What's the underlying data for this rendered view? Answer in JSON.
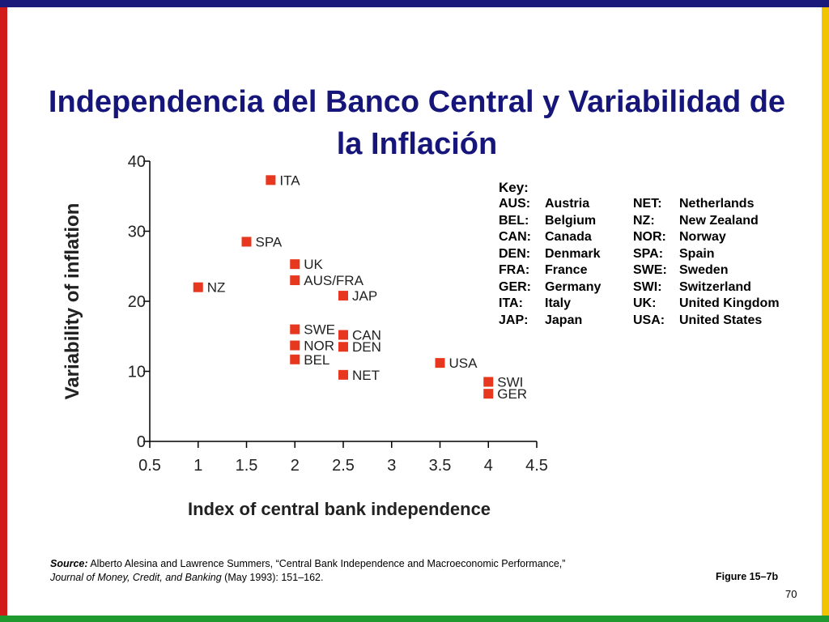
{
  "slide": {
    "title": "Independencia del Banco Central y Variabilidad de la Inflación",
    "source_label": "Source:",
    "source_authors": " Alberto Alesina and Lawrence Summers, “Central Bank Independence and Macroeconomic Performance,” ",
    "source_journal": "Journal of Money, Credit, and Banking",
    "source_tail": " (May 1993): 151–162.",
    "figure_label": "Figure 15–7b",
    "page_number": "70",
    "colors": {
      "top_bar": "#1a1a7a",
      "left_bar": "#d11a1a",
      "right_bar": "#f2c400",
      "bottom_bar": "#1f9a2e",
      "title": "#16167a",
      "marker": "#e8371f"
    }
  },
  "key": {
    "title": "Key:",
    "left": [
      {
        "code": "AUS:",
        "name": "Austria"
      },
      {
        "code": "BEL:",
        "name": "Belgium"
      },
      {
        "code": "CAN:",
        "name": "Canada"
      },
      {
        "code": "DEN:",
        "name": "Denmark"
      },
      {
        "code": "FRA:",
        "name": "France"
      },
      {
        "code": "GER:",
        "name": "Germany"
      },
      {
        "code": "ITA:",
        "name": "Italy"
      },
      {
        "code": "JAP:",
        "name": "Japan"
      }
    ],
    "right": [
      {
        "code": "NET:",
        "name": "Netherlands"
      },
      {
        "code": "NZ:",
        "name": "New Zealand"
      },
      {
        "code": "NOR:",
        "name": "Norway"
      },
      {
        "code": "SPA:",
        "name": "Spain"
      },
      {
        "code": "SWE:",
        "name": "Sweden"
      },
      {
        "code": "SWI:",
        "name": "Switzerland"
      },
      {
        "code": "UK:",
        "name": "United Kingdom"
      },
      {
        "code": "USA:",
        "name": "United States"
      }
    ]
  },
  "chart_data": {
    "type": "scatter",
    "title": "",
    "xlabel": "Index of central bank independence",
    "ylabel": "Variability of inflation",
    "xlim": [
      0.5,
      4.5
    ],
    "ylim": [
      0,
      40
    ],
    "xticks": [
      "0.5",
      "1",
      "1.5",
      "2",
      "2.5",
      "3",
      "3.5",
      "4",
      "4.5"
    ],
    "yticks": [
      "0",
      "10",
      "20",
      "30",
      "40"
    ],
    "grid": false,
    "points": [
      {
        "label": "ITA",
        "x": 1.75,
        "y": 37.3
      },
      {
        "label": "SPA",
        "x": 1.5,
        "y": 28.5
      },
      {
        "label": "UK",
        "x": 2.0,
        "y": 25.3
      },
      {
        "label": "AUS/FRA",
        "x": 2.0,
        "y": 23.0
      },
      {
        "label": "NZ",
        "x": 1.0,
        "y": 22.0
      },
      {
        "label": "JAP",
        "x": 2.5,
        "y": 20.8
      },
      {
        "label": "SWE",
        "x": 2.0,
        "y": 16.0
      },
      {
        "label": "CAN",
        "x": 2.5,
        "y": 15.2
      },
      {
        "label": "NOR",
        "x": 2.0,
        "y": 13.7
      },
      {
        "label": "DEN",
        "x": 2.5,
        "y": 13.5
      },
      {
        "label": "BEL",
        "x": 2.0,
        "y": 11.7
      },
      {
        "label": "USA",
        "x": 3.5,
        "y": 11.2
      },
      {
        "label": "NET",
        "x": 2.5,
        "y": 9.5
      },
      {
        "label": "SWI",
        "x": 4.0,
        "y": 8.5
      },
      {
        "label": "GER",
        "x": 4.0,
        "y": 6.8
      }
    ]
  }
}
